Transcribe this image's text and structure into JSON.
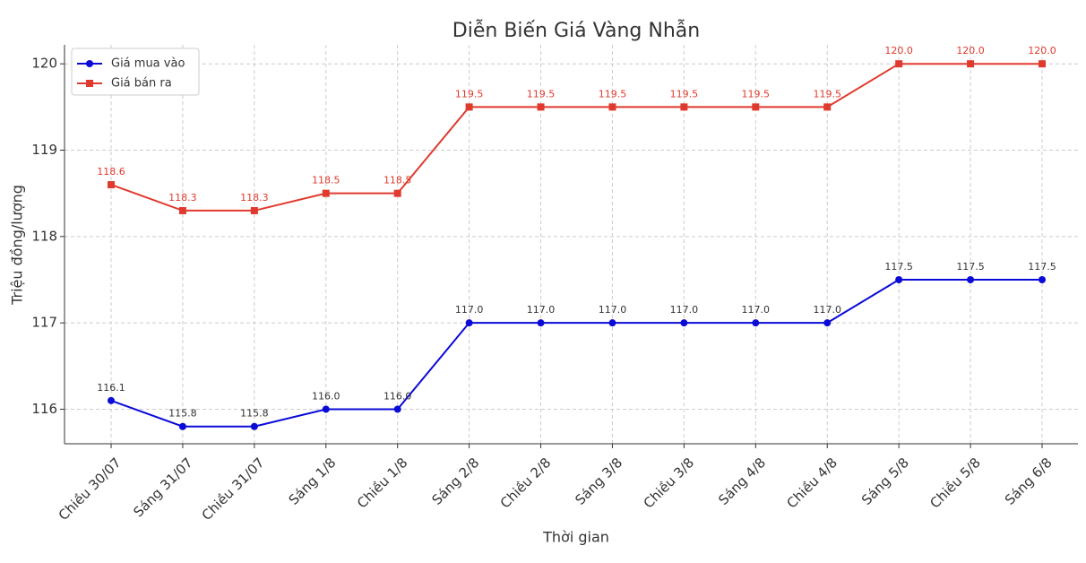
{
  "chart_data": {
    "type": "line",
    "title": "Diễn Biến Giá Vàng Nhẫn",
    "x_label": "Thời gian",
    "y_label": "Triệu đồng/lượng",
    "categories": [
      "Chiều 30/07",
      "Sáng 31/07",
      "Chiều 31/07",
      "Sáng 1/8",
      "Chiều 1/8",
      "Sáng 2/8",
      "Chiều 2/8",
      "Sáng 3/8",
      "Chiều 3/8",
      "Sáng 4/8",
      "Chiều 4/8",
      "Sáng 5/8",
      "Chiều 5/8",
      "Sáng 6/8"
    ],
    "series": [
      {
        "name": "Giá mua vào",
        "color": "#0b0bd8",
        "marker": "circle",
        "label_color": "#333333",
        "values": [
          116.1,
          115.8,
          115.8,
          116.0,
          116.0,
          117.0,
          117.0,
          117.0,
          117.0,
          117.0,
          117.0,
          117.5,
          117.5,
          117.5
        ],
        "value_labels": [
          "116.1",
          "115.8",
          "115.8",
          "116.0",
          "116.0",
          "117.0",
          "117.0",
          "117.0",
          "117.0",
          "117.0",
          "117.0",
          "117.5",
          "117.5",
          "117.5"
        ]
      },
      {
        "name": "Giá bán ra",
        "color": "#e03a2e",
        "marker": "square",
        "label_color": "#e03a2e",
        "values": [
          118.6,
          118.3,
          118.3,
          118.5,
          118.5,
          119.5,
          119.5,
          119.5,
          119.5,
          119.5,
          119.5,
          120.0,
          120.0,
          120.0
        ],
        "value_labels": [
          "118.6",
          "118.3",
          "118.3",
          "118.5",
          "118.5",
          "119.5",
          "119.5",
          "119.5",
          "119.5",
          "119.5",
          "119.5",
          "120.0",
          "120.0",
          "120.0"
        ]
      }
    ],
    "ylim": [
      115.6,
      120.22
    ],
    "yticks": [
      116,
      117,
      118,
      119,
      120
    ],
    "grid": true,
    "legend": "upper left"
  }
}
